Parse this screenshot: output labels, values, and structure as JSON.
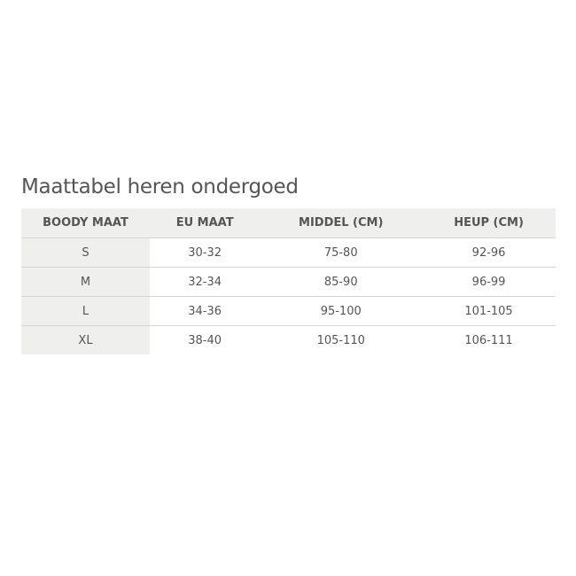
{
  "title": "Maattabel heren ondergoed",
  "table": {
    "headers": [
      "BOODY MAAT",
      "EU MAAT",
      "MIDDEL (CM)",
      "HEUP (CM)"
    ],
    "rows": [
      [
        "S",
        "30-32",
        "75-80",
        "92-96"
      ],
      [
        "M",
        "32-34",
        "85-90",
        "96-99"
      ],
      [
        "L",
        "34-36",
        "95-100",
        "101-105"
      ],
      [
        "XL",
        "38-40",
        "105-110",
        "106-111"
      ]
    ]
  }
}
